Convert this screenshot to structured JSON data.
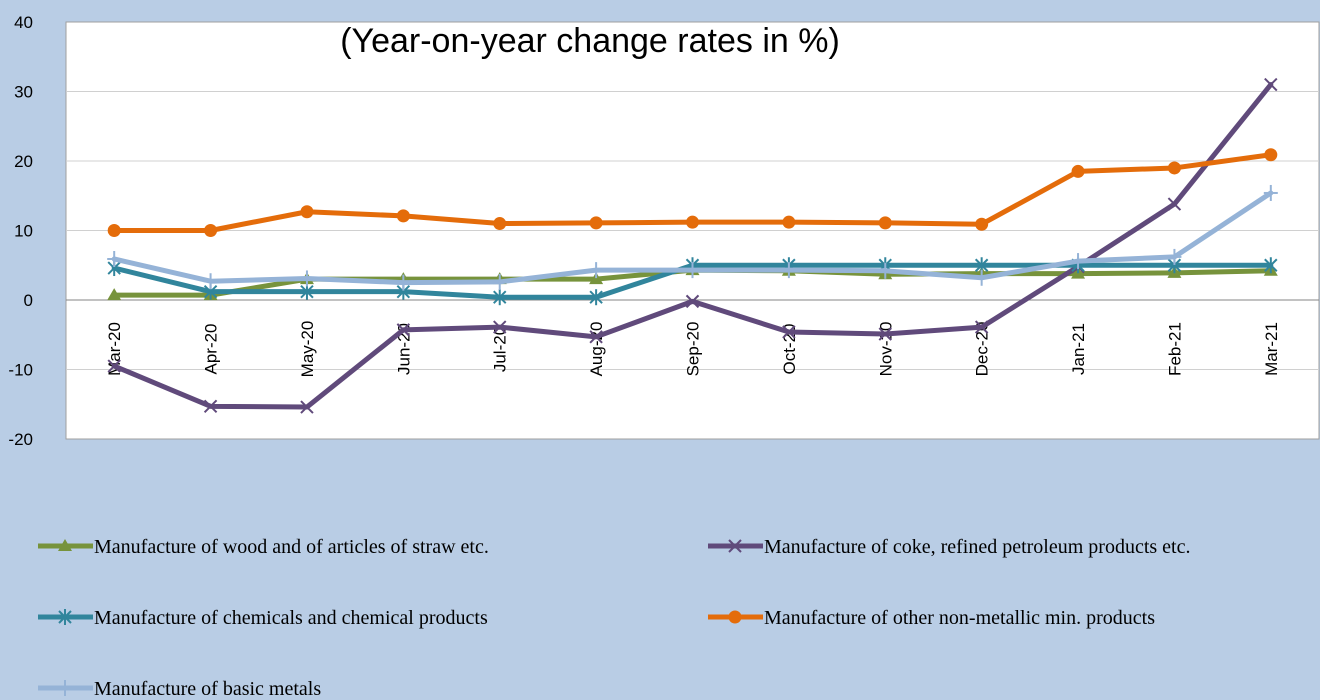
{
  "chart_data": {
    "type": "line",
    "title": "(Year-on-year change rates in %)",
    "categories": [
      "Mar-20",
      "Apr-20",
      "May-20",
      "Jun-20",
      "Jul-20",
      "Aug-20",
      "Sep-20",
      "Oct-20",
      "Nov-20",
      "Dec-20",
      "Jan-21",
      "Feb-21",
      "Mar-21"
    ],
    "ylim": [
      -20,
      40
    ],
    "yticks": [
      "-20",
      "-10",
      "0",
      "10",
      "20",
      "30",
      "40"
    ],
    "grid": true,
    "legend_position": "bottom",
    "series": [
      {
        "name": "Manufacture of wood and of articles of straw etc.",
        "color": "#77933c",
        "marker": "triangle",
        "values": [
          0.7,
          0.7,
          3.0,
          3.0,
          3.0,
          3.0,
          4.3,
          4.2,
          3.7,
          3.8,
          3.8,
          3.9,
          4.2
        ]
      },
      {
        "name": "Manufacture of coke, refined petroleum products etc.",
        "color": "#604a7b",
        "marker": "x",
        "values": [
          -9.5,
          -15.3,
          -15.4,
          -4.3,
          -3.9,
          -5.3,
          -0.2,
          -4.6,
          -4.9,
          -3.9,
          4.8,
          13.8,
          31.0
        ]
      },
      {
        "name": "Manufacture of chemicals and chemical products",
        "color": "#31859c",
        "marker": "star",
        "values": [
          4.6,
          1.2,
          1.2,
          1.2,
          0.4,
          0.4,
          5.0,
          5.0,
          5.0,
          5.0,
          5.0,
          5.0,
          5.0
        ]
      },
      {
        "name": "Manufacture of other non-metallic min. products",
        "color": "#e46c0a",
        "marker": "circle",
        "values": [
          10.0,
          10.0,
          12.7,
          12.1,
          11.0,
          11.1,
          11.2,
          11.2,
          11.1,
          10.9,
          18.5,
          19.0,
          20.9
        ]
      },
      {
        "name": "Manufacture of basic metals",
        "color": "#95b3d7",
        "marker": "plus",
        "values": [
          5.9,
          2.7,
          3.1,
          2.5,
          2.6,
          4.3,
          4.3,
          4.3,
          4.2,
          3.2,
          5.6,
          6.2,
          15.4
        ]
      }
    ]
  }
}
